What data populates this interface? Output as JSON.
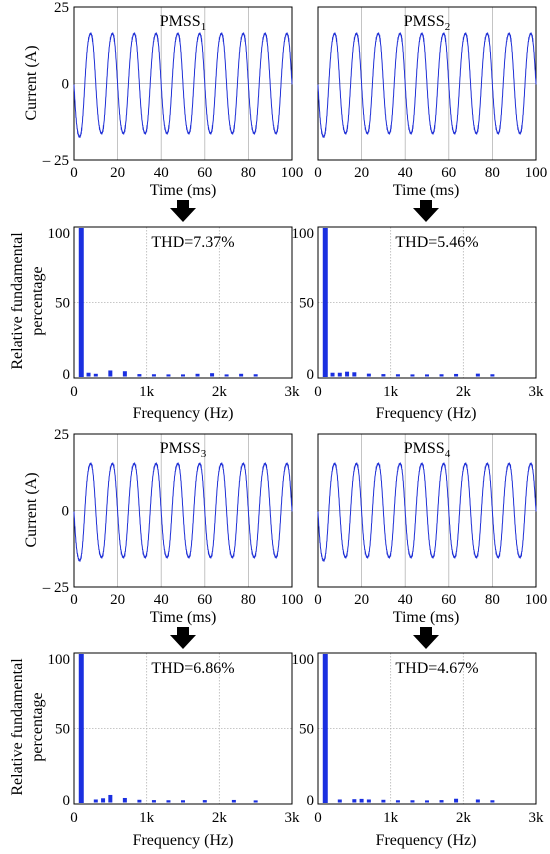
{
  "colors": {
    "trace": "#1f2fd6",
    "bar": "#1a2fe0",
    "grid": "#b5b5b5",
    "arrow": "#000000"
  },
  "rows": [
    {
      "ylabel": "Current (A)",
      "xlabel": "Time (ms)",
      "hx_label": "Frequency (Hz)",
      "hy_label_1": "Relative fundamental",
      "hy_label_2": "percentage"
    },
    {
      "ylabel": "Current (A)",
      "xlabel": "Time (ms)",
      "hx_label": "Frequency (Hz)",
      "hy_label_1": "Relative fundamental",
      "hy_label_2": "percentage"
    }
  ],
  "chart_data": [
    {
      "type": "line",
      "title_main": "PMSS",
      "title_sub": "1",
      "xlabel": "Time (ms)",
      "ylabel": "Current (A)",
      "xlim": [
        0,
        100
      ],
      "ylim": [
        -25,
        25
      ],
      "xticks": [
        "0",
        "20",
        "40",
        "60",
        "80",
        "100"
      ],
      "yticks": [
        "25",
        "0",
        "– 25"
      ],
      "amplitude": 17,
      "frequency_hz": 100,
      "phase_deg": 180,
      "grid": true
    },
    {
      "type": "line",
      "title_main": "PMSS",
      "title_sub": "2",
      "xlabel": "Time (ms)",
      "ylabel": "",
      "xlim": [
        0,
        100
      ],
      "ylim": [
        -25,
        25
      ],
      "xticks": [
        "0",
        "20",
        "40",
        "60",
        "80",
        "100"
      ],
      "amplitude": 17,
      "frequency_hz": 100,
      "phase_deg": 180,
      "grid": true
    },
    {
      "type": "bar",
      "thd": "THD=7.37%",
      "xlabel": "Frequency (Hz)",
      "ylabel": "Relative fundamental percentage",
      "xlim": [
        0,
        3000
      ],
      "ylim": [
        0,
        100
      ],
      "xticks": [
        "0",
        "1k",
        "2k",
        "3k"
      ],
      "yticks": [
        "100",
        "50",
        "0"
      ],
      "x": [
        100,
        200,
        300,
        500,
        700,
        900,
        1100,
        1300,
        1500,
        1700,
        1900,
        2100,
        2300,
        2500
      ],
      "values": [
        100,
        1.5,
        0.8,
        3.0,
        2.5,
        0.6,
        0.5,
        0.4,
        0.4,
        0.8,
        1.2,
        0.4,
        0.8,
        0.5
      ],
      "grid": true
    },
    {
      "type": "bar",
      "thd": "THD=5.46%",
      "xlabel": "Frequency (Hz)",
      "ylabel": "",
      "xlim": [
        0,
        3000
      ],
      "ylim": [
        0,
        100
      ],
      "xticks": [
        "0",
        "1k",
        "2k",
        "3k"
      ],
      "yticks": [
        "100",
        "50",
        "0"
      ],
      "x": [
        100,
        200,
        300,
        400,
        500,
        700,
        900,
        1100,
        1300,
        1500,
        1700,
        1900,
        2200,
        2400
      ],
      "values": [
        100,
        1.5,
        1.5,
        2.2,
        1.8,
        0.9,
        0.6,
        0.5,
        0.4,
        0.4,
        0.5,
        0.7,
        0.9,
        0.5
      ],
      "grid": true
    },
    {
      "type": "line",
      "title_main": "PMSS",
      "title_sub": "3",
      "xlabel": "Time (ms)",
      "ylabel": "Current (A)",
      "xlim": [
        0,
        100
      ],
      "ylim": [
        -25,
        25
      ],
      "xticks": [
        "0",
        "20",
        "40",
        "60",
        "80",
        "100"
      ],
      "yticks": [
        "25",
        "0",
        "– 25"
      ],
      "amplitude": 16,
      "frequency_hz": 100,
      "phase_deg": 180,
      "grid": true
    },
    {
      "type": "line",
      "title_main": "PMSS",
      "title_sub": "4",
      "xlabel": "Time (ms)",
      "ylabel": "",
      "xlim": [
        0,
        100
      ],
      "ylim": [
        -25,
        25
      ],
      "xticks": [
        "0",
        "20",
        "40",
        "60",
        "80",
        "100"
      ],
      "amplitude": 16,
      "frequency_hz": 100,
      "phase_deg": 180,
      "grid": true
    },
    {
      "type": "bar",
      "thd": "THD=6.86%",
      "xlabel": "Frequency (Hz)",
      "ylabel": "Relative fundamental percentage",
      "xlim": [
        0,
        3000
      ],
      "ylim": [
        0,
        100
      ],
      "xticks": [
        "0",
        "1k",
        "2k",
        "3k"
      ],
      "yticks": [
        "100",
        "50",
        "0"
      ],
      "x": [
        100,
        300,
        400,
        500,
        700,
        900,
        1100,
        1300,
        1500,
        1800,
        2200,
        2500
      ],
      "values": [
        100,
        1.0,
        1.8,
        4.0,
        2.0,
        0.8,
        0.6,
        0.5,
        0.5,
        0.6,
        0.7,
        0.4
      ],
      "grid": true
    },
    {
      "type": "bar",
      "thd": "THD=4.67%",
      "xlabel": "Frequency (Hz)",
      "ylabel": "",
      "xlim": [
        0,
        3000
      ],
      "ylim": [
        0,
        100
      ],
      "xticks": [
        "0",
        "1k",
        "2k",
        "3k"
      ],
      "yticks": [
        "100",
        "50",
        "0"
      ],
      "x": [
        100,
        300,
        500,
        600,
        700,
        900,
        1100,
        1300,
        1500,
        1700,
        1900,
        2200,
        2400
      ],
      "values": [
        100,
        1.0,
        1.2,
        1.4,
        1.0,
        0.8,
        0.5,
        0.5,
        0.4,
        0.6,
        1.5,
        1.0,
        0.5
      ],
      "grid": true
    }
  ]
}
